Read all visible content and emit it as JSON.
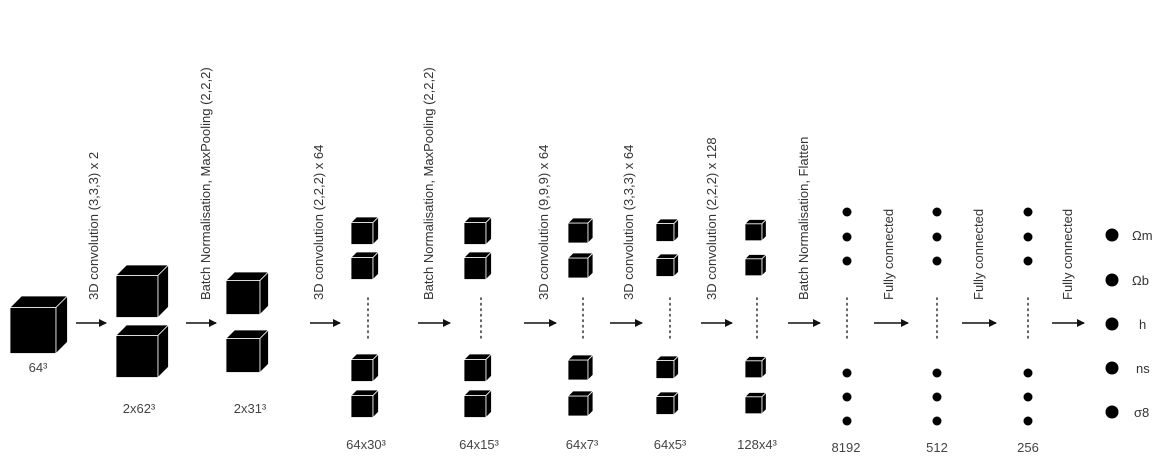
{
  "input": {
    "size_label": "64³"
  },
  "stages": [
    {
      "op_label": "3D convolution (3,3,3)  x 2",
      "size_label": "2x62³"
    },
    {
      "op_label": "Batch Normalisation, MaxPooling (2,2,2)",
      "size_label": "2x31³"
    },
    {
      "op_label": "3D convolution (2,2,2) x 64",
      "size_label": "64x30³"
    },
    {
      "op_label": "Batch Normalisation, MaxPooling (2,2,2)",
      "size_label": "64x15³"
    },
    {
      "op_label": "3D convolution (9,9,9) x 64",
      "size_label": "64x7³"
    },
    {
      "op_label": "3D convolution (3,3,3) x 64",
      "size_label": "64x5³"
    },
    {
      "op_label": "3D convolution (2,2,2) x 128",
      "size_label": "128x4³"
    },
    {
      "op_label": "Batch Normalisation, Flatten",
      "size_label": "8192"
    },
    {
      "op_label": "Fully connected",
      "size_label": "512"
    },
    {
      "op_label": "Fully connected",
      "size_label": "256"
    },
    {
      "op_label": "Fully connected",
      "size_label": ""
    }
  ],
  "outputs": [
    "Ωm",
    "Ωb",
    "h",
    "ns",
    "σ8"
  ],
  "colors": {
    "block": "#000000",
    "arrow": "#111111",
    "text": "#333333"
  }
}
